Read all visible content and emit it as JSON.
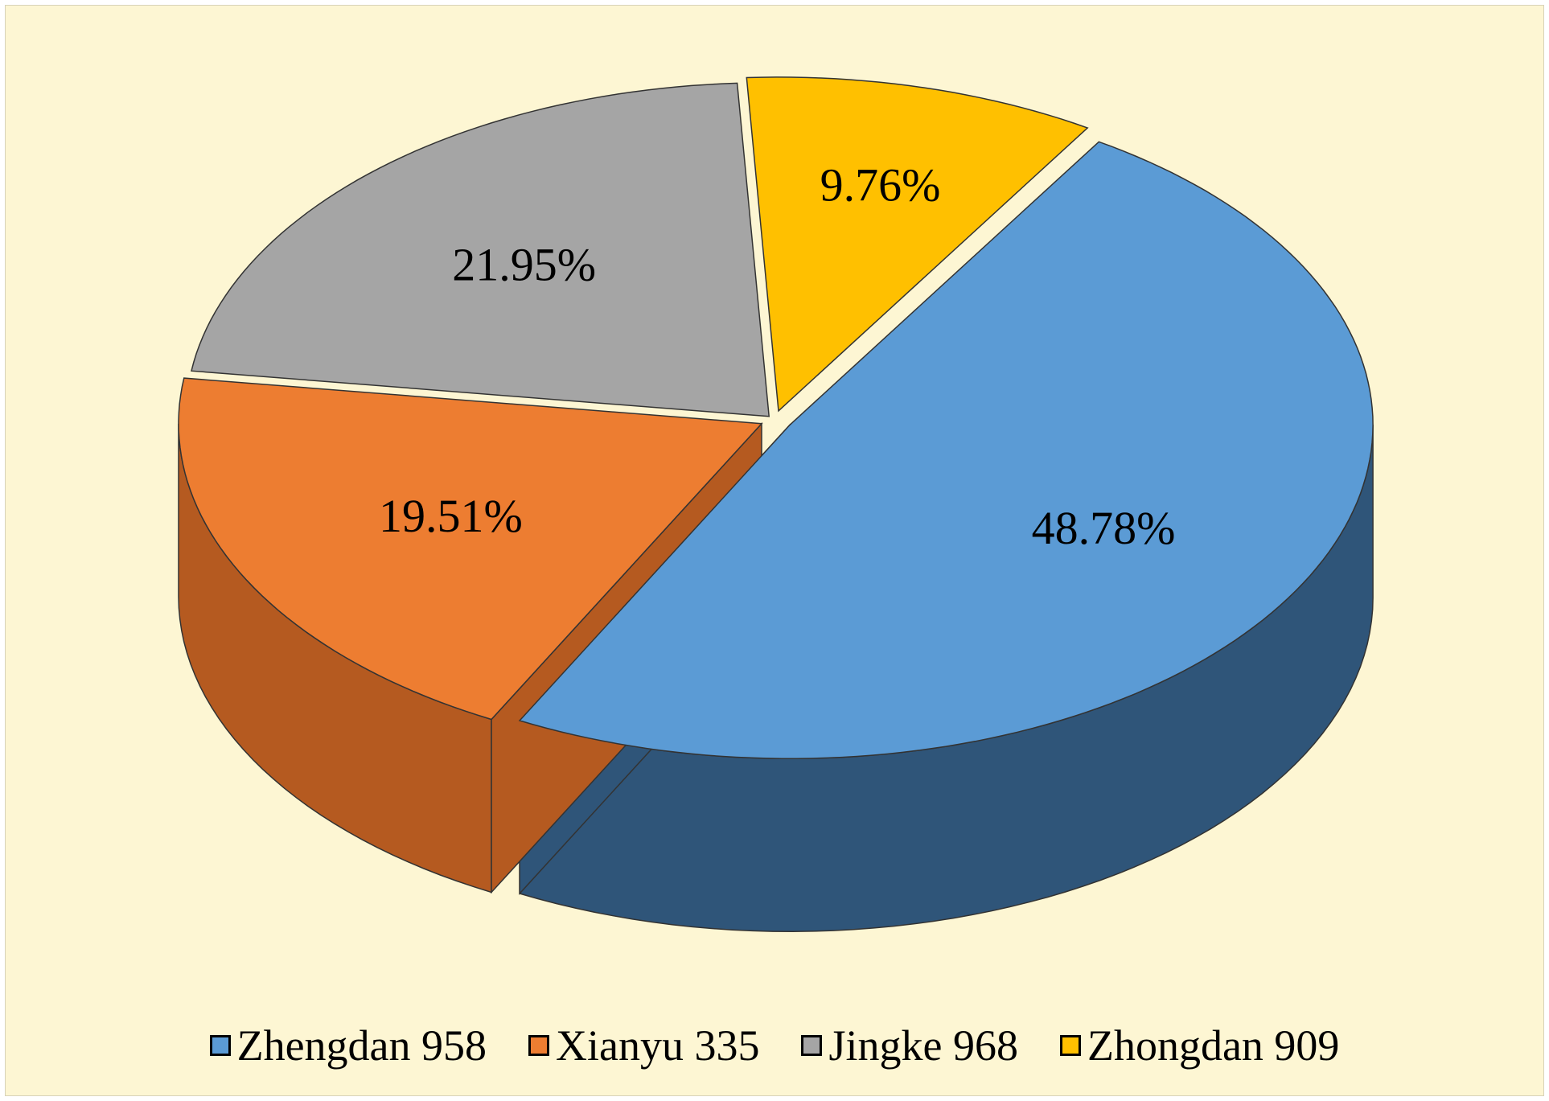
{
  "chart_data": {
    "type": "pie",
    "title": "",
    "series": [
      {
        "name": "Zhengdan 958",
        "value": 48.78,
        "label": "48.78%",
        "color": "#5b9bd5",
        "side_color": "#2f5579"
      },
      {
        "name": "Xianyu 335",
        "value": 19.51,
        "label": "19.51%",
        "color": "#ed7d31",
        "side_color": "#b55a20"
      },
      {
        "name": "Jingke 968",
        "value": 21.95,
        "label": "21.95%",
        "color": "#a5a5a5",
        "side_color": "#7a7a7a"
      },
      {
        "name": "Zhongdan 909",
        "value": 9.76,
        "label": "9.76%",
        "color": "#ffc000",
        "side_color": "#b58a00"
      }
    ],
    "legend_position": "bottom",
    "style": "3d-exploded",
    "background": "#fdf6d3"
  }
}
